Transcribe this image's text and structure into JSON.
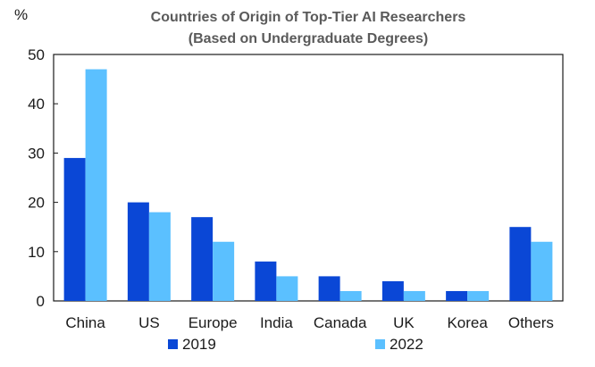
{
  "chart_data": {
    "type": "bar",
    "title": "Countries of Origin of Top-Tier AI Researchers",
    "subtitle": "(Based on Undergraduate Degrees)",
    "ylabel": "%",
    "xlabel": "",
    "ylim": [
      0,
      50
    ],
    "yticks": [
      0,
      10,
      20,
      30,
      40,
      50
    ],
    "categories": [
      "China",
      "US",
      "Europe",
      "India",
      "Canada",
      "UK",
      "Korea",
      "Others"
    ],
    "series": [
      {
        "name": "2019",
        "color": "#0a47d6",
        "values": [
          29,
          20,
          17,
          8,
          5,
          4,
          2,
          15
        ]
      },
      {
        "name": "2022",
        "color": "#5bc0ff",
        "values": [
          47,
          18,
          12,
          5,
          2,
          2,
          2,
          12
        ]
      }
    ],
    "legend_position": "bottom",
    "grid": false
  }
}
